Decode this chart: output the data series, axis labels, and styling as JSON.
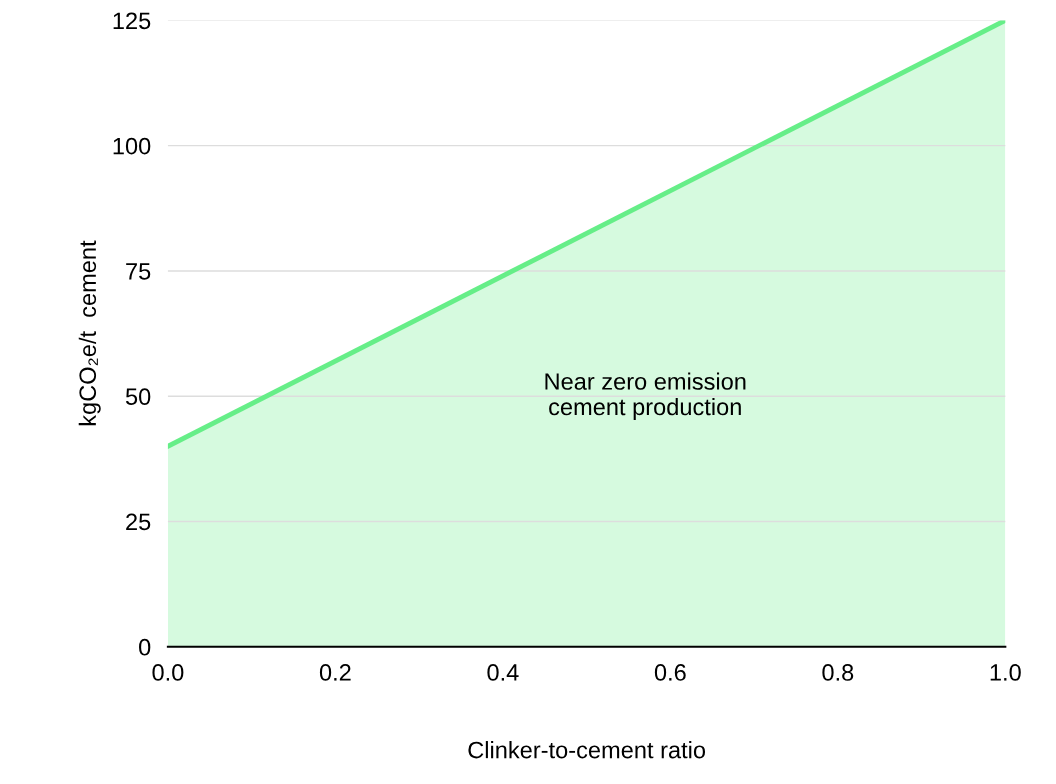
{
  "chart_data": {
    "type": "area",
    "xlabel": "Clinker-to-cement ratio",
    "ylabel": "kgCO₂e/t  cement",
    "x": [
      0.0,
      1.0
    ],
    "series": [
      {
        "color": "#66ee88",
        "values": [
          40,
          125
        ]
      }
    ],
    "xlim": [
      0.0,
      1.0
    ],
    "xticks": [
      {
        "value": 0.0,
        "label": "0.0"
      },
      {
        "value": 0.2,
        "label": "0.2"
      },
      {
        "value": 0.4,
        "label": "0.4"
      },
      {
        "value": 0.6,
        "label": "0.6"
      },
      {
        "value": 0.8,
        "label": "0.8"
      },
      {
        "value": 1.0,
        "label": "1.0"
      }
    ],
    "ylim": [
      0,
      125
    ],
    "yticks": [
      0,
      25,
      50,
      75,
      100,
      125
    ],
    "grid": "y",
    "annotations": [
      "Near zero emission\ncement production"
    ]
  }
}
